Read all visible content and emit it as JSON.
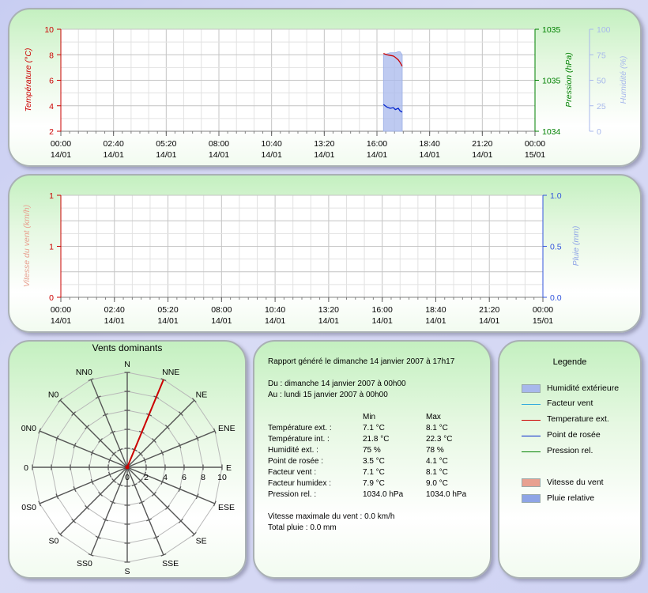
{
  "colors": {
    "temperature": "#cc0000",
    "pressure": "#008000",
    "humidity": "#a8b8ec",
    "dewpoint": "#0022cc",
    "windchill": "#33aadd",
    "wind": "#e8a090",
    "rain": "#8ea4e6"
  },
  "chart_data": [
    {
      "type": "line",
      "x_ticks": [
        {
          "time": "00:00",
          "date": "14/01"
        },
        {
          "time": "02:40",
          "date": "14/01"
        },
        {
          "time": "05:20",
          "date": "14/01"
        },
        {
          "time": "08:00",
          "date": "14/01"
        },
        {
          "time": "10:40",
          "date": "14/01"
        },
        {
          "time": "13:20",
          "date": "14/01"
        },
        {
          "time": "16:00",
          "date": "14/01"
        },
        {
          "time": "18:40",
          "date": "14/01"
        },
        {
          "time": "21:20",
          "date": "14/01"
        },
        {
          "time": "00:00",
          "date": "15/01"
        }
      ],
      "y_left": {
        "label": "Température (°C)",
        "ticks": [
          "2",
          "4",
          "6",
          "8",
          "10"
        ],
        "range": [
          2,
          10
        ]
      },
      "y_right1": {
        "label": "Pression (hPa)",
        "ticks": [
          "1034",
          "1035",
          "1035"
        ],
        "range": [
          1034.0,
          1035.0
        ]
      },
      "y_right2": {
        "label": "Humidité (%)",
        "ticks": [
          "0",
          "25",
          "50",
          "75",
          "100"
        ],
        "range": [
          0,
          100
        ]
      },
      "x_hours": [
        16.33,
        16.5,
        16.67,
        16.83,
        16.93,
        17.08,
        17.17,
        17.28
      ],
      "series": [
        {
          "name": "Humidité extérieure",
          "values": [
            75,
            76,
            77,
            77,
            77,
            78,
            78,
            75
          ]
        },
        {
          "name": "Temperature ext.",
          "values": [
            8.1,
            8.0,
            7.95,
            7.9,
            7.8,
            7.6,
            7.4,
            7.1
          ]
        },
        {
          "name": "Point de rosée",
          "values": [
            4.1,
            3.9,
            3.8,
            3.85,
            3.7,
            3.8,
            3.6,
            3.5
          ]
        }
      ]
    },
    {
      "type": "line",
      "x_ticks": [
        {
          "time": "00:00",
          "date": "14/01"
        },
        {
          "time": "02:40",
          "date": "14/01"
        },
        {
          "time": "05:20",
          "date": "14/01"
        },
        {
          "time": "08:00",
          "date": "14/01"
        },
        {
          "time": "10:40",
          "date": "14/01"
        },
        {
          "time": "13:20",
          "date": "14/01"
        },
        {
          "time": "16:00",
          "date": "14/01"
        },
        {
          "time": "18:40",
          "date": "14/01"
        },
        {
          "time": "21:20",
          "date": "14/01"
        },
        {
          "time": "00:00",
          "date": "15/01"
        }
      ],
      "y_left": {
        "label": "Vitesse du vent (km/h)",
        "ticks": [
          "0",
          "1",
          "1"
        ],
        "range": [
          0,
          1
        ]
      },
      "y_right": {
        "label": "Pluie (mm)",
        "ticks": [
          "0.0",
          "0.5",
          "1.0"
        ],
        "range": [
          0,
          1
        ]
      },
      "series": []
    },
    {
      "type": "radar",
      "title": "Vents dominants",
      "directions": [
        "N",
        "NNE",
        "NE",
        "ENE",
        "E",
        "ESE",
        "SE",
        "SSE",
        "S",
        "SS0",
        "S0",
        "0S0",
        "0",
        "0N0",
        "N0",
        "NN0"
      ],
      "radial_ticks": [
        "0",
        "2",
        "4",
        "6",
        "8",
        "10"
      ],
      "rmax": 10,
      "dominant": {
        "direction": "NNE",
        "value": 10
      }
    }
  ],
  "report": {
    "generated": "Rapport généré le dimanche 14 janvier 2007 à 17h17",
    "from": "Du : dimanche 14 janvier 2007 à 00h00",
    "to": "Au : lundi 15 janvier 2007 à 00h00",
    "col_min": "Min",
    "col_max": "Max",
    "rows": [
      {
        "label": "Température ext. :",
        "min": "7.1 °C",
        "max": "8.1 °C"
      },
      {
        "label": "Température int. :",
        "min": "21.8 °C",
        "max": "22.3 °C"
      },
      {
        "label": "Humidité ext. :",
        "min": "75 %",
        "max": "78 %"
      },
      {
        "label": "Point de rosée :",
        "min": "3.5 °C",
        "max": "4.1 °C"
      },
      {
        "label": "Facteur vent :",
        "min": "7.1 °C",
        "max": "8.1 °C"
      },
      {
        "label": "Facteur humidex :",
        "min": "7.9 °C",
        "max": "9.0 °C"
      },
      {
        "label": "Pression rel. :",
        "min": "1034.0 hPa",
        "max": "1034.0 hPa"
      }
    ],
    "wind_max": "Vitesse maximale du vent : 0.0 km/h",
    "rain_total": "Total pluie : 0.0 mm"
  },
  "legend": {
    "title": "Legende",
    "items": [
      {
        "label": "Humidité extérieure",
        "kind": "box",
        "color": "#a8b8ec"
      },
      {
        "label": "Facteur vent",
        "kind": "line",
        "color": "#33aadd"
      },
      {
        "label": "Temperature ext.",
        "kind": "line",
        "color": "#cc0000"
      },
      {
        "label": "Point de rosée",
        "kind": "line",
        "color": "#0022cc"
      },
      {
        "label": "Pression rel.",
        "kind": "line",
        "color": "#008000"
      },
      {
        "label": "Vitesse du vent",
        "kind": "box",
        "color": "#e8a090"
      },
      {
        "label": "Pluie relative",
        "kind": "box",
        "color": "#8ea4e6"
      }
    ]
  }
}
